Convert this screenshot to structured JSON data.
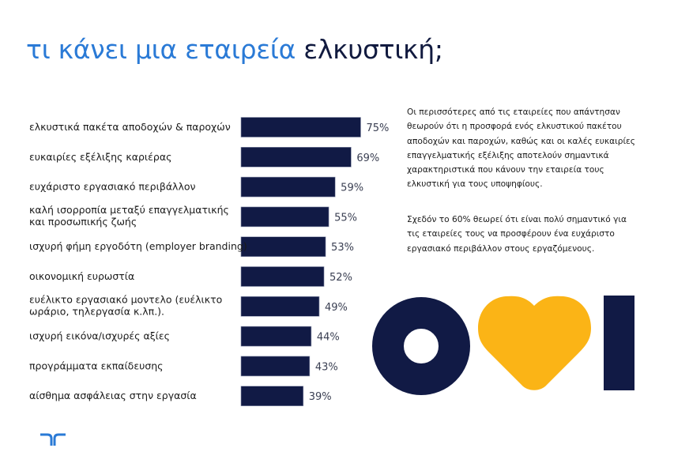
{
  "title": {
    "accent_part": "τι κάνει μια εταιρεία",
    "dark_part": "ελκυστική;"
  },
  "colors": {
    "accent_blue": "#2a7ad6",
    "navy": "#111a45",
    "yellow": "#fbb416"
  },
  "chart_data": {
    "type": "bar",
    "orientation": "horizontal",
    "title": "τι κάνει μια εταιρεία ελκυστική;",
    "xlabel": "",
    "ylabel": "",
    "xlim": [
      0,
      100
    ],
    "grid": false,
    "value_suffix": "%",
    "categories": [
      [
        "ελκυστικά πακέτα αποδοχών & παροχών"
      ],
      [
        "ευκαιρίες εξέλιξης καριέρας"
      ],
      [
        "ευχάριστο εργασιακό περιβάλλον"
      ],
      [
        "καλή ισορροπία μεταξύ επαγγελματικής",
        "και προσωπικής ζωής"
      ],
      [
        "ισχυρή φήμη εργοδότη (employer branding)"
      ],
      [
        "οικονομική ευρωστία"
      ],
      [
        "ευέλικτο εργασιακό μοντελο  (ευέλικτο",
        "ωράριο, τηλεργασία κ.λπ.)."
      ],
      [
        "ισχυρή εικόνα/ισχυρές αξίες"
      ],
      [
        "προγράμματα εκπαίδευσης"
      ],
      [
        "αίσθημα ασφάλειας στην εργασία"
      ]
    ],
    "values": [
      75,
      69,
      59,
      55,
      53,
      52,
      49,
      44,
      43,
      39
    ],
    "value_labels": [
      "75%",
      "69%",
      "59%",
      "55%",
      "53%",
      "52%",
      "49%",
      "44%",
      "43%",
      "39%"
    ]
  },
  "side_text": {
    "paragraph1": "Οι περισσότερες από τις εταιρείες που απάντησαν θεωρούν ότι η προσφορά ενός ελκυστικού πακέτου αποδοχών και παροχών, καθώς και οι καλές ευκαιρίες επαγγελματικής εξέλιξης αποτελούν σημαντικά χαρακτηριστικά που κάνουν την εταιρεία τους ελκυστική για τους υποψηφίους.",
    "paragraph2": "Σχεδόν το 60% θεωρεί ότι είναι πολύ σημαντικό για τις εταιρείες τους να προσφέρουν ένα ευχάριστο εργασιακό περιβάλλον στους εργαζόμενους."
  },
  "graphics": {
    "logo": "randstad-logo-icon",
    "decoration": [
      "ring-shape",
      "heart-shape",
      "bar-shape"
    ]
  }
}
